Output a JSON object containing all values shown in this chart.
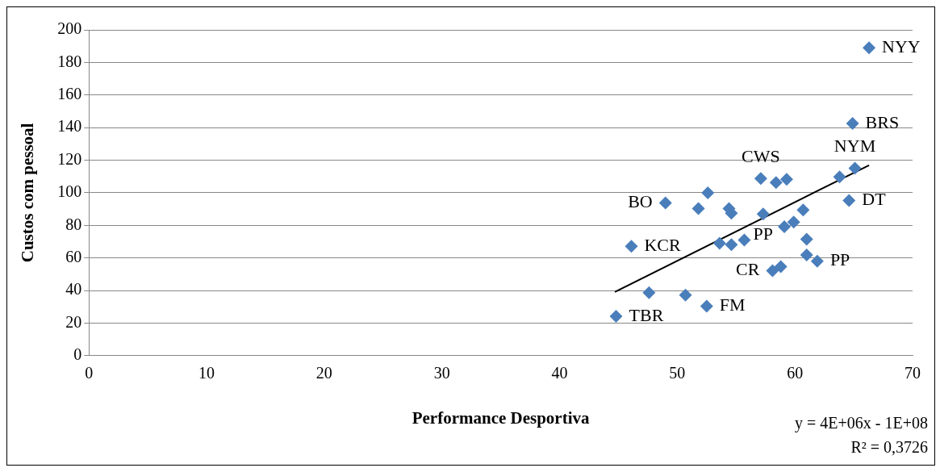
{
  "chart_data": {
    "type": "scatter",
    "xlabel": "Performance Desportiva",
    "ylabel": "Custos com pessoal",
    "xlim": [
      0,
      70
    ],
    "xticks": [
      0,
      10,
      20,
      30,
      40,
      50,
      60,
      70
    ],
    "ylim": [
      0,
      200
    ],
    "yticks": [
      0,
      20,
      40,
      60,
      80,
      100,
      120,
      140,
      160,
      180,
      200
    ],
    "grid": "y",
    "marker": "diamond",
    "series": [
      {
        "color": "#4a7ebb",
        "x": [
          66.3,
          64.9,
          65.1,
          63.8,
          64.6,
          57.1,
          58.4,
          59.3,
          52.6,
          49.0,
          51.8,
          54.4,
          54.6,
          57.3,
          60.7,
          59.9,
          59.1,
          46.1,
          53.6,
          54.6,
          55.7,
          61.0,
          61.0,
          61.9,
          58.8,
          58.1,
          47.6,
          50.7,
          52.5,
          44.8
        ],
        "values": [
          189,
          142.5,
          115,
          109.7,
          95.2,
          108.7,
          106.3,
          108.2,
          100,
          93.7,
          90.3,
          90.3,
          87.4,
          87,
          89.4,
          82,
          79.2,
          67.1,
          69,
          68.1,
          71,
          71.5,
          61.8,
          58,
          54.6,
          52.2,
          38.6,
          37.2,
          30.4,
          24.2
        ]
      },
      {
        "type": "line",
        "color": "#000000",
        "marker": "none",
        "x": [
          44.7,
          66.3
        ],
        "values": [
          39.1,
          116.9
        ]
      }
    ],
    "annotations": [
      {
        "text": "NYY",
        "x": 66.3,
        "y": 189
      },
      {
        "text": "BRS",
        "x": 64.9,
        "y": 142.5
      },
      {
        "text": "NYM",
        "x": 65.1,
        "y": 115
      },
      {
        "text": "DT",
        "x": 64.6,
        "y": 95.2
      },
      {
        "text": "CWS",
        "x": 57.1,
        "y": 108.7
      },
      {
        "text": "BO",
        "x": 49.0,
        "y": 93.7
      },
      {
        "text": "PP",
        "x": 57.3,
        "y": 87
      },
      {
        "text": "KCR",
        "x": 46.1,
        "y": 67.1
      },
      {
        "text": "CR",
        "x": 58.1,
        "y": 52.2
      },
      {
        "text": "PP",
        "x": 61.9,
        "y": 58
      },
      {
        "text": "FM",
        "x": 52.5,
        "y": 30.4
      },
      {
        "text": "TBR",
        "x": 44.8,
        "y": 24.2
      },
      "y = 4E+06x - 1E+08",
      "R² = 0,3726"
    ]
  }
}
